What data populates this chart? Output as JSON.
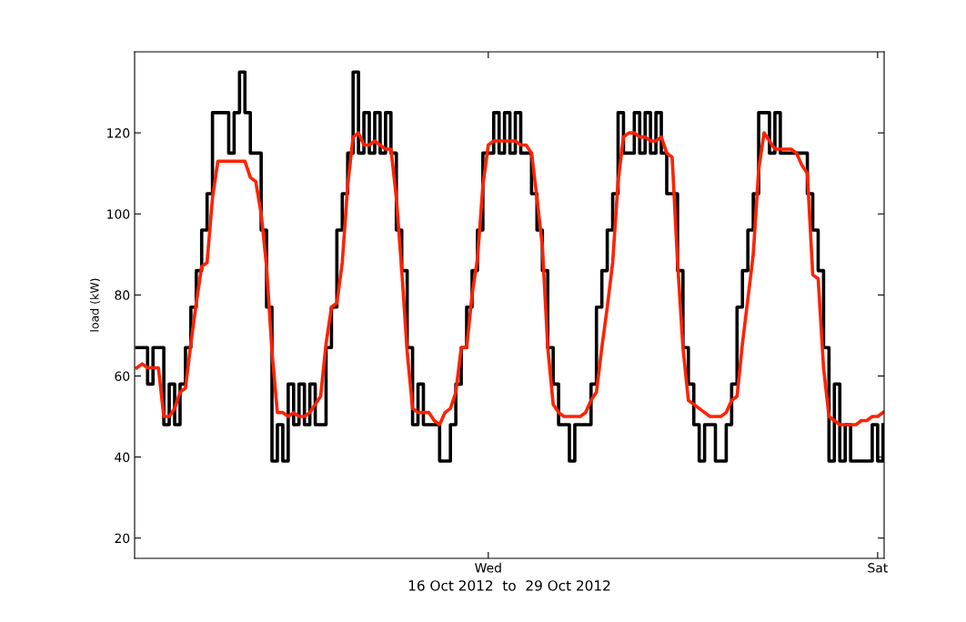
{
  "chart_data": {
    "type": "line",
    "xlabel": "16 Oct 2012  to  29 Oct 2012",
    "ylabel": "load (kW)",
    "categories": [
      null,
      null,
      null,
      null,
      null,
      null,
      null,
      null,
      null,
      null,
      null,
      null,
      null,
      null,
      null,
      null,
      null,
      null,
      null,
      null,
      null,
      null,
      null,
      null,
      null,
      null,
      null,
      null,
      null,
      null,
      null,
      null,
      null,
      null,
      null,
      null,
      null,
      null,
      null,
      null,
      null,
      null,
      null,
      null,
      null,
      null,
      null,
      null,
      null,
      null,
      null,
      null,
      null,
      null,
      null,
      null,
      null,
      null,
      null,
      null,
      null,
      null,
      null,
      null,
      null,
      "Wed",
      null,
      null,
      null,
      null,
      null,
      null,
      null,
      null,
      null,
      null,
      null,
      null,
      null,
      null,
      null,
      null,
      null,
      null,
      null,
      null,
      null,
      null,
      null,
      null,
      null,
      null,
      null,
      null,
      null,
      null,
      null,
      null,
      null,
      null,
      null,
      null,
      null,
      null,
      null,
      null,
      null,
      null,
      null,
      null,
      null,
      null,
      null,
      null,
      null,
      null,
      null,
      null,
      null,
      null,
      null,
      null,
      null,
      null,
      null,
      null,
      null,
      null,
      null,
      null,
      null,
      null,
      null,
      null,
      null,
      null,
      null,
      "Sat",
      null
    ],
    "ylim": [
      15,
      140
    ],
    "yticks": [
      20,
      40,
      60,
      80,
      100,
      120
    ],
    "grid": false,
    "series": [
      {
        "type": "step",
        "color": "#000000",
        "values": [
          67,
          67,
          58,
          67,
          67,
          48,
          58,
          48,
          58,
          67,
          77,
          86,
          96,
          105,
          125,
          125,
          125,
          115,
          125,
          135,
          125,
          115,
          115,
          96,
          77,
          39,
          48,
          39,
          58,
          48,
          58,
          48,
          58,
          48,
          48,
          67,
          77,
          96,
          105,
          115,
          135,
          115,
          125,
          115,
          125,
          115,
          125,
          115,
          96,
          86,
          67,
          48,
          58,
          48,
          48,
          48,
          39,
          39,
          48,
          58,
          67,
          77,
          86,
          96,
          115,
          115,
          125,
          115,
          125,
          115,
          125,
          115,
          115,
          105,
          96,
          86,
          67,
          58,
          48,
          48,
          39,
          48,
          48,
          48,
          58,
          77,
          86,
          96,
          105,
          125,
          115,
          115,
          125,
          115,
          125,
          115,
          125,
          115,
          105,
          105,
          86,
          67,
          58,
          48,
          39,
          48,
          48,
          39,
          39,
          48,
          58,
          77,
          86,
          96,
          105,
          125,
          125,
          115,
          125,
          115,
          115,
          115,
          115,
          115,
          105,
          96,
          86,
          67,
          39,
          58,
          39,
          48,
          39,
          39,
          39,
          39,
          48,
          39,
          48
        ]
      },
      {
        "color": "#ff2200",
        "values": [
          62,
          63,
          62,
          62,
          62,
          50,
          50,
          52,
          56,
          57,
          68,
          78,
          87,
          88,
          104,
          113,
          113,
          113,
          113,
          113,
          113,
          109,
          108,
          100,
          87,
          66,
          51,
          51,
          50,
          51,
          50,
          50,
          51,
          53,
          55,
          68,
          77,
          78,
          88,
          107,
          119,
          120,
          117,
          117,
          118,
          117,
          116,
          116,
          104,
          86,
          66,
          52,
          51,
          51,
          51,
          49,
          48,
          51,
          52,
          56,
          67,
          67,
          80,
          89,
          107,
          117,
          118,
          118,
          118,
          118,
          118,
          117,
          117,
          115,
          104,
          92,
          67,
          53,
          51,
          50,
          50,
          50,
          50,
          51,
          54,
          56,
          67,
          77,
          88,
          108,
          119,
          120,
          120,
          119,
          119,
          118,
          118,
          119,
          115,
          114,
          88,
          67,
          54,
          53,
          52,
          51,
          50,
          50,
          50,
          51,
          54,
          55,
          68,
          79,
          90,
          111,
          120,
          118,
          116,
          116,
          116,
          116,
          115,
          112,
          110,
          85,
          84,
          62,
          50,
          49,
          48,
          48,
          48,
          48,
          49,
          49,
          50,
          50,
          51
        ]
      }
    ]
  }
}
